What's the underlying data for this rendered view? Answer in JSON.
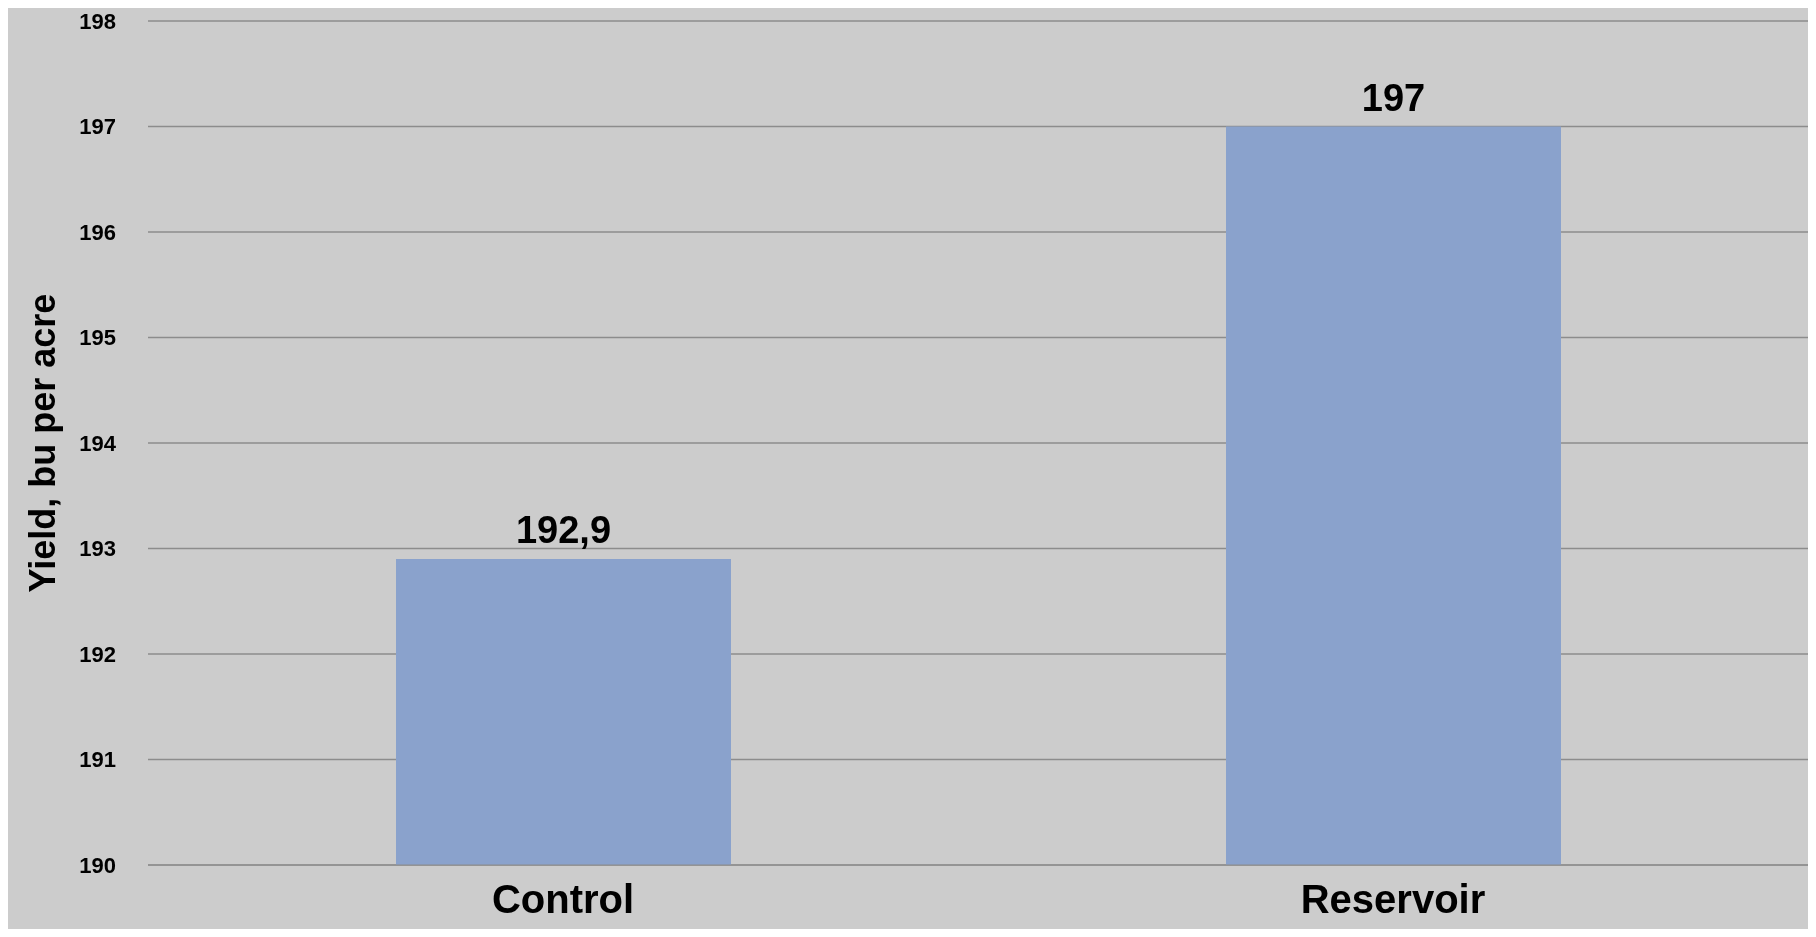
{
  "chart_data": {
    "type": "bar",
    "ylabel": "Yield, bu per acre",
    "categories": [
      "Control",
      "Reservoir"
    ],
    "values": [
      192.9,
      197
    ],
    "value_labels": [
      "192,9",
      "197"
    ],
    "color": "#8aa2cc",
    "ylim": [
      190,
      198
    ],
    "yticks": [
      190,
      191,
      192,
      193,
      194,
      195,
      196,
      197,
      198
    ],
    "grid": "y"
  }
}
